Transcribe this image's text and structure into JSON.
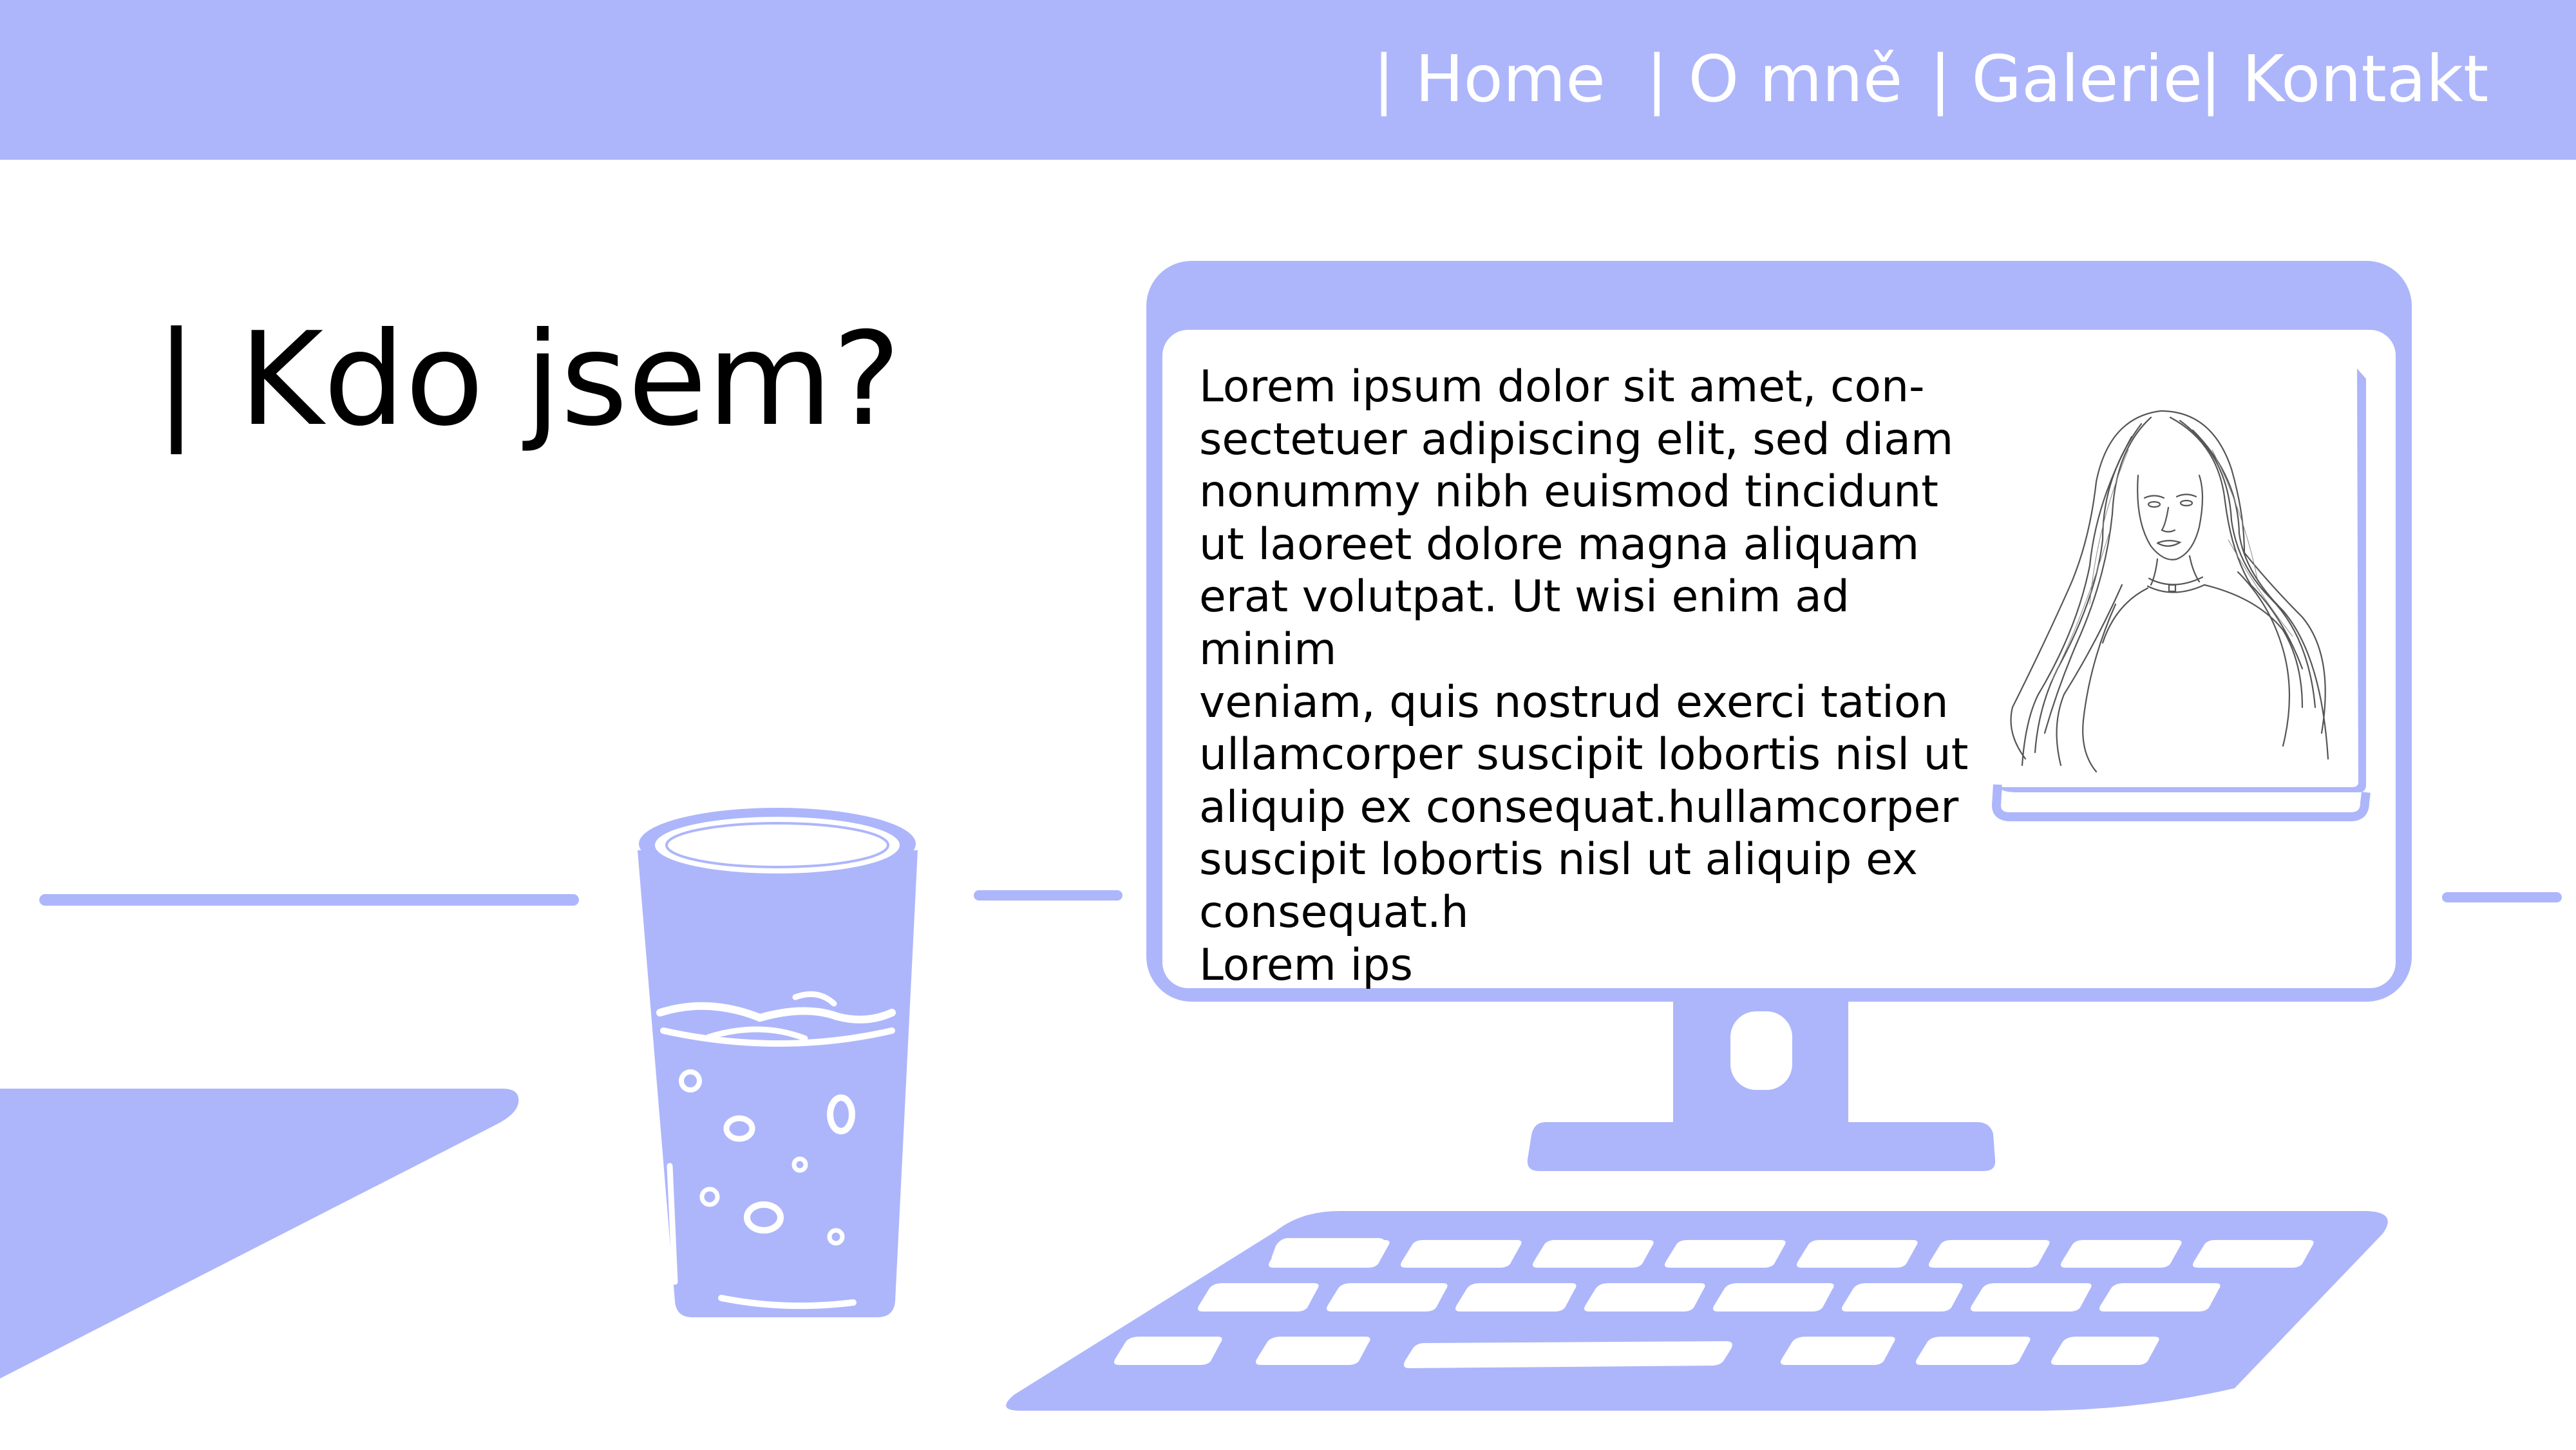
{
  "nav": {
    "items": [
      {
        "label": "| Home"
      },
      {
        "label": "| O mně"
      },
      {
        "label": "| Galerie"
      },
      {
        "label": "| Kontakt"
      }
    ]
  },
  "main": {
    "heading": "| Kdo jsem?",
    "screen_text": "Lorem ipsum dolor sit amet, con-\nsectetuer adipiscing elit, sed diam\nnonummy nibh euismod tincidunt\nut laoreet dolore magna aliquam\nerat volutpat. Ut wisi enim ad minim\nveniam, quis nostrud exerci tation\nullamcorper suscipit lobortis nisl ut\naliquip ex consequat.hullamcorper\nsuscipit lobortis nisl ut aliquip ex\nconsequat.h\nLorem ips"
  },
  "colors": {
    "accent": "#adb6fb",
    "background": "#ffffff",
    "text": "#000000"
  },
  "illustration": {
    "icons": [
      "drinking-glass-icon",
      "desktop-monitor-icon",
      "keyboard-icon",
      "portrait-sketch"
    ]
  }
}
